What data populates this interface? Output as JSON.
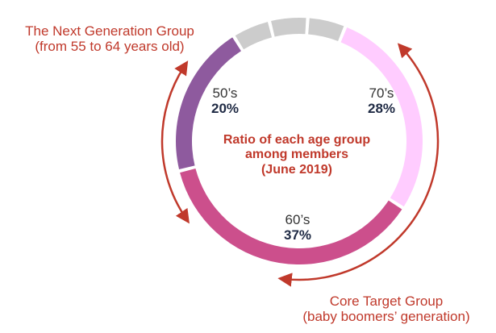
{
  "chart_data": {
    "type": "pie",
    "style": "donut",
    "title_lines": [
      "Ratio of each age group",
      "among members"
    ],
    "date_label": "(June 2019)",
    "slices": [
      {
        "label": "70’s",
        "value": 28,
        "value_label": "28%",
        "color": "#ffccff"
      },
      {
        "label": "60’s",
        "value": 37,
        "value_label": "37%",
        "color": "#cc4f8c"
      },
      {
        "label": "50’s",
        "value": 20,
        "value_label": "20%",
        "color": "#8e5a9e"
      },
      {
        "label": "",
        "value": 5,
        "value_label": "",
        "color": "#cccccc"
      },
      {
        "label": "",
        "value": 5,
        "value_label": "",
        "color": "#cccccc"
      },
      {
        "label": "",
        "value": 5,
        "value_label": "",
        "color": "#cccccc"
      }
    ],
    "annotations": {
      "next_generation": [
        "The Next Generation Group",
        "(from 55 to 64 years old)"
      ],
      "core_target": [
        "Core Target Group",
        "(baby boomers’ generation)"
      ]
    },
    "annotation_color": "#c0392b"
  }
}
